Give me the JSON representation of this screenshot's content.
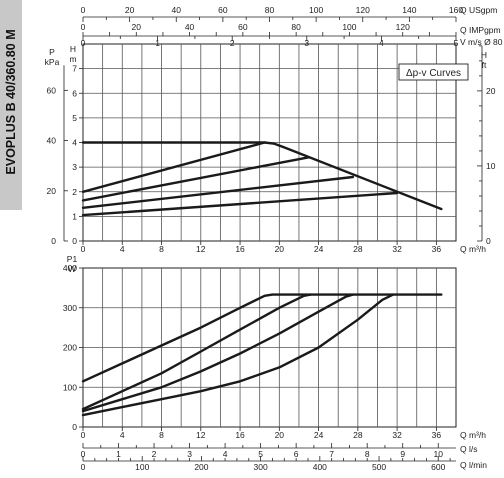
{
  "model_title": "EVOPLUS B 40/360.80 M",
  "colors": {
    "curve": "#1a1a1a",
    "grid": "#555555",
    "side_tab": "#c8c8c8",
    "text": "#222222"
  },
  "chart_data": [
    {
      "id": "head",
      "type": "line",
      "annotation": "Δp-v Curves",
      "left_axis_labels": {
        "primary": "P",
        "primary_unit": "kPa",
        "secondary": "H",
        "secondary_unit": "m"
      },
      "right_axis_labels": {
        "name": "H",
        "unit": "ft"
      },
      "x_unit_label": "Q m³/h",
      "xlim": [
        0,
        38
      ],
      "ylim": [
        0,
        8
      ],
      "x_ticks": [
        0,
        4,
        8,
        12,
        16,
        20,
        24,
        28,
        32,
        36
      ],
      "y_ticks_m": [
        0,
        1,
        2,
        3,
        4,
        5,
        6,
        7
      ],
      "y_ticks_kpa": [
        0,
        20,
        40,
        60
      ],
      "y_ticks_ft": [
        0,
        10,
        20
      ],
      "top_axes": [
        {
          "label": "Q USgpm",
          "min": 0,
          "max": 160,
          "ticks": [
            0,
            20,
            40,
            60,
            80,
            100,
            120,
            140,
            160
          ]
        },
        {
          "label": "Q IMPgpm",
          "min": 0,
          "max": 140,
          "ticks": [
            0,
            20,
            40,
            60,
            80,
            100,
            120
          ]
        },
        {
          "label": "V m/s Ø 80",
          "min": 0,
          "max": 5,
          "ticks": [
            0,
            1,
            2,
            3,
            4,
            5
          ]
        }
      ],
      "series": [
        {
          "x": [
            0,
            18.5,
            19.5,
            20.5,
            36.5
          ],
          "y": [
            4.0,
            4.0,
            3.95,
            3.8,
            1.3
          ]
        },
        {
          "x": [
            0,
            18.5
          ],
          "y": [
            2.0,
            4.0
          ]
        },
        {
          "x": [
            0,
            23
          ],
          "y": [
            1.65,
            3.4
          ]
        },
        {
          "x": [
            0,
            27.5
          ],
          "y": [
            1.35,
            2.6
          ]
        },
        {
          "x": [
            0,
            32
          ],
          "y": [
            1.05,
            1.95
          ]
        }
      ]
    },
    {
      "id": "power",
      "type": "line",
      "y_axis_label": {
        "name": "P1",
        "unit": "W"
      },
      "x_unit_label": "Q m³/h",
      "xlim": [
        0,
        38
      ],
      "ylim": [
        0,
        400
      ],
      "x_ticks": [
        0,
        4,
        8,
        12,
        16,
        20,
        24,
        28,
        32,
        36
      ],
      "y_ticks": [
        0,
        100,
        200,
        300,
        400
      ],
      "bottom_axes": [
        {
          "label": "Q l/s",
          "min": 0,
          "max": 10.5,
          "ticks": [
            0,
            1,
            2,
            3,
            4,
            5,
            6,
            7,
            8,
            9,
            10
          ]
        },
        {
          "label": "Q l/min",
          "min": 0,
          "max": 630,
          "ticks": [
            0,
            100,
            200,
            300,
            400,
            500,
            600
          ]
        }
      ],
      "series": [
        {
          "x": [
            0,
            4,
            8,
            12,
            16,
            18.5,
            19.3,
            36.5
          ],
          "y": [
            115,
            160,
            205,
            250,
            300,
            330,
            333,
            333
          ]
        },
        {
          "x": [
            0,
            4,
            8,
            12,
            16,
            20,
            22.5,
            23.2
          ],
          "y": [
            45,
            90,
            135,
            190,
            245,
            300,
            330,
            333
          ]
        },
        {
          "x": [
            0,
            4,
            8,
            12,
            16,
            20,
            24,
            26.8,
            27.5
          ],
          "y": [
            40,
            70,
            100,
            140,
            185,
            235,
            290,
            328,
            333
          ]
        },
        {
          "x": [
            0,
            4,
            8,
            12,
            16,
            20,
            24,
            28,
            30.5,
            31.6
          ],
          "y": [
            30,
            50,
            70,
            90,
            115,
            150,
            200,
            270,
            320,
            333
          ]
        }
      ]
    }
  ]
}
